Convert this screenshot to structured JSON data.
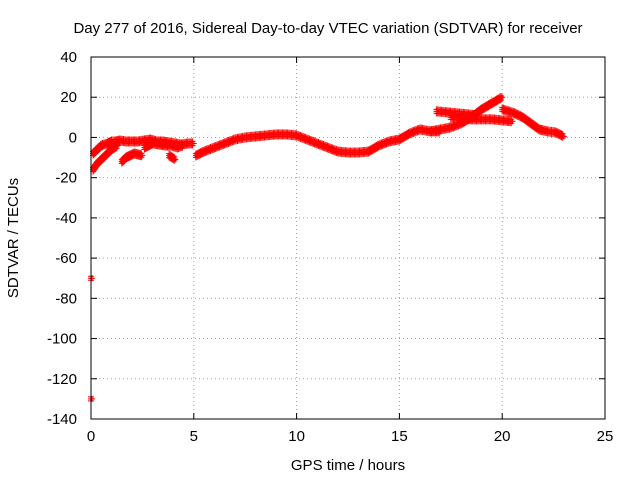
{
  "chart_data": {
    "type": "scatter",
    "title": "Day 277 of 2016, Sidereal Day-to-day VTEC variation (SDTVAR) for receiver",
    "xlabel": "GPS time / hours",
    "ylabel": "SDTVAR / TECUs",
    "xlim": [
      0,
      25
    ],
    "ylim": [
      -140,
      40
    ],
    "xticks": [
      0,
      5,
      10,
      15,
      20,
      25
    ],
    "yticks": [
      -140,
      -120,
      -100,
      -80,
      -60,
      -40,
      -20,
      0,
      20,
      40
    ],
    "grid": true,
    "marker": "plus",
    "color": "#ff0000",
    "series": [
      {
        "x": [
          0.1,
          0.3,
          0.5,
          0.8,
          1.0,
          1.2,
          1.4,
          1.7,
          2.0,
          2.3,
          2.6,
          2.9,
          3.2,
          3.5,
          3.8,
          4.1,
          4.4,
          4.7,
          5.0
        ],
        "y": [
          -8,
          -6,
          -4,
          -3,
          -2,
          -2,
          -1.5,
          -2,
          -2,
          -2,
          -1.5,
          -1,
          -2,
          -2,
          -2.5,
          -3,
          -3.5,
          -3,
          -3
        ]
      },
      {
        "x": [
          0.1,
          0.3,
          0.5,
          0.8,
          1.0,
          1.3
        ],
        "y": [
          -16,
          -13,
          -11,
          -8,
          -6,
          -4
        ]
      },
      {
        "x": [
          1.5,
          1.7,
          1.9,
          2.1,
          2.3,
          2.5
        ],
        "y": [
          -12,
          -10,
          -9,
          -8,
          -8.5,
          -9
        ]
      },
      {
        "x": [
          2.6,
          2.8,
          3.0,
          3.3,
          3.6,
          3.9,
          4.2,
          4.5
        ],
        "y": [
          -5,
          -4,
          -3,
          -3.5,
          -4,
          -4,
          -5,
          -4
        ]
      },
      {
        "x": [
          3.8,
          3.95,
          4.1
        ],
        "y": [
          -9,
          -10,
          -11
        ]
      },
      {
        "x": [
          5.1,
          5.5,
          6.0,
          6.5,
          7.0,
          7.5,
          8.0,
          8.5,
          9.0,
          9.5,
          10.0,
          10.5,
          11.0,
          11.5,
          12.0,
          12.5,
          13.0,
          13.5,
          14.0,
          14.5,
          15.0,
          15.5,
          16.0,
          16.5,
          17.0
        ],
        "y": [
          -9,
          -7,
          -5,
          -3,
          -1,
          0,
          0.5,
          1,
          1.5,
          1.5,
          1,
          -1,
          -3,
          -5,
          -7,
          -7.5,
          -7.5,
          -7,
          -4,
          -2,
          -1,
          2,
          4,
          3,
          3
        ]
      },
      {
        "x": [
          16.5,
          17.0,
          17.5,
          18.0,
          18.5,
          19.0,
          19.5,
          20.0
        ],
        "y": [
          3,
          4,
          5,
          7,
          10,
          14,
          17,
          20
        ]
      },
      {
        "x": [
          16.8,
          17.3,
          17.8,
          18.3,
          18.8
        ],
        "y": [
          13,
          12.5,
          12,
          11.5,
          11
        ]
      },
      {
        "x": [
          17.5,
          18.0,
          18.5,
          19.0,
          19.5,
          20.0,
          20.5
        ],
        "y": [
          10,
          9.5,
          9,
          9,
          9,
          8.5,
          8
        ]
      },
      {
        "x": [
          20.0,
          20.3,
          20.6,
          21.0,
          21.4,
          21.8,
          22.2,
          22.6,
          23.0
        ],
        "y": [
          14,
          13,
          12,
          10,
          7,
          4,
          3,
          2.5,
          0.5
        ]
      },
      {
        "x": [
          0.0,
          0.05
        ],
        "y": [
          -70,
          -70
        ]
      },
      {
        "x": [
          0.0,
          0.05
        ],
        "y": [
          -130,
          -130
        ]
      }
    ]
  }
}
